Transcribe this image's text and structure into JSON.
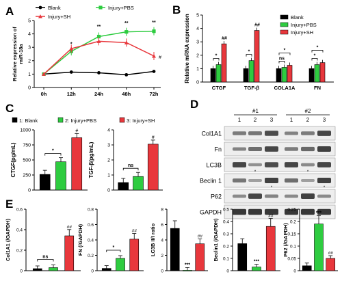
{
  "panels": {
    "A": "A",
    "B": "B",
    "C": "C",
    "D": "D",
    "E": "E"
  },
  "colors": {
    "blank": "#000000",
    "pbs": "#2ecc40",
    "sh": "#e8373c",
    "band": "#2a2a2a"
  },
  "chart_data": [
    {
      "panel": "A",
      "type": "line",
      "ylabel": "Relative expression of miR-18a",
      "x": [
        "0h",
        "12h",
        "24h",
        "48h",
        "72h"
      ],
      "ylim": [
        0,
        5
      ],
      "yticks": [
        0,
        1,
        2,
        3,
        4,
        5
      ],
      "legend": {
        "position": "top-left"
      },
      "series": [
        {
          "name": "Blank",
          "values": [
            1.0,
            1.15,
            1.1,
            0.95,
            1.2
          ]
        },
        {
          "name": "Injury+PBS",
          "values": [
            1.0,
            2.7,
            3.8,
            4.15,
            4.2
          ]
        },
        {
          "name": "Injury+SH",
          "values": [
            1.0,
            2.9,
            3.45,
            3.35,
            2.35
          ]
        }
      ],
      "annotations": [
        {
          "x": "12h",
          "text": "*"
        },
        {
          "x": "24h",
          "text": "**"
        },
        {
          "x": "48h",
          "text": "**"
        },
        {
          "x": "72h",
          "text": "**"
        },
        {
          "x": "72h",
          "text": "#"
        }
      ]
    },
    {
      "panel": "B",
      "type": "bar",
      "ylabel": "Relative mRNA expression",
      "categories": [
        "CTGF",
        "TGF-β",
        "COLA1A",
        "FN"
      ],
      "ylim": [
        0,
        5
      ],
      "yticks": [
        0,
        1,
        2,
        3,
        4,
        5
      ],
      "legend": {
        "position": "top-right"
      },
      "series": [
        {
          "name": "Blank",
          "values": [
            1.0,
            1.0,
            1.0,
            1.0
          ]
        },
        {
          "name": "Injury+PBS",
          "values": [
            1.3,
            1.6,
            1.1,
            1.3
          ]
        },
        {
          "name": "Injury+SH",
          "values": [
            2.85,
            3.85,
            1.25,
            1.45
          ]
        }
      ],
      "annotations": [
        "*",
        "##",
        "*",
        "##",
        "ns",
        "*",
        "*",
        "*"
      ]
    },
    {
      "panel": "C",
      "type": "bar",
      "legend_items": [
        "1: Blank",
        "2: Injury+PBS",
        "3: Injury+SH"
      ],
      "subcharts": [
        {
          "ylabel": "CTGF(pg/mL)",
          "categories": [
            "1",
            "2",
            "3"
          ],
          "values": [
            260,
            470,
            870
          ],
          "ylim": [
            0,
            1000
          ],
          "yticks": [
            0,
            250,
            500,
            750,
            1000
          ],
          "annotations": [
            "*",
            "#"
          ]
        },
        {
          "ylabel": "TGF-β(pg/mL)",
          "categories": [
            "1",
            "2",
            "3"
          ],
          "values": [
            0.5,
            0.9,
            3.05
          ],
          "ylim": [
            0,
            4
          ],
          "yticks": [
            0,
            1,
            2,
            3,
            4
          ],
          "annotations": [
            "ns",
            "#"
          ]
        }
      ]
    },
    {
      "panel": "E",
      "type": "bar",
      "categories": [
        "Blank",
        "Injury+PBS",
        "Injury+SH"
      ],
      "subcharts": [
        {
          "ylabel": "Col1A1 (/GAPDH)",
          "values": [
            0.02,
            0.03,
            0.34
          ],
          "ylim": [
            0,
            0.6
          ],
          "yticks": [
            0.0,
            0.2,
            0.4,
            0.6
          ],
          "annotations": [
            "ns",
            "##"
          ]
        },
        {
          "ylabel": "FN (/GAPDH)",
          "values": [
            0.03,
            0.16,
            0.41
          ],
          "ylim": [
            0,
            0.8
          ],
          "yticks": [
            0.0,
            0.2,
            0.4,
            0.6,
            0.8
          ],
          "annotations": [
            "*",
            "##"
          ]
        },
        {
          "ylabel": "LC3B II/I ratio",
          "values": [
            5.5,
            0.05,
            3.5
          ],
          "ylim": [
            0,
            8
          ],
          "yticks": [
            0,
            2,
            4,
            6,
            8
          ],
          "annotations": [
            "***",
            "##"
          ]
        },
        {
          "ylabel": "Beclin1 (/GAPDH)",
          "values": [
            0.22,
            0.03,
            0.36
          ],
          "ylim": [
            0,
            0.5
          ],
          "yticks": [
            0.0,
            0.1,
            0.2,
            0.3,
            0.4,
            0.5
          ],
          "annotations": [
            "***",
            "##"
          ]
        },
        {
          "ylabel": "P62 (/GAPDH)",
          "values": [
            0.02,
            0.19,
            0.05
          ],
          "ylim": [
            0,
            0.25
          ],
          "yticks": [
            0.0,
            0.05,
            0.1,
            0.15,
            0.2,
            0.25
          ],
          "annotations": [
            "***",
            "##"
          ]
        }
      ]
    }
  ],
  "blot": {
    "group_labels": [
      "#1",
      "#2"
    ],
    "lane_labels": [
      "1",
      "2",
      "3",
      "1",
      "2",
      "3"
    ],
    "rows": [
      {
        "label": "Col1A1",
        "intensities": [
          0.4,
          0.45,
          0.75,
          0.35,
          0.4,
          0.8
        ]
      },
      {
        "label": "Fn",
        "intensities": [
          0.35,
          0.5,
          0.8,
          0.4,
          0.55,
          0.85
        ]
      },
      {
        "label": "LC3B",
        "intensities": [
          0.8,
          0.25,
          0.75,
          0.8,
          0.3,
          0.8
        ]
      },
      {
        "label": "Beclin 1",
        "intensities": [
          0.45,
          0.15,
          0.85,
          0.5,
          0.15,
          0.85
        ]
      },
      {
        "label": "P62",
        "intensities": [
          0.3,
          0.8,
          0.35,
          0.3,
          0.85,
          0.3
        ]
      },
      {
        "label": "GAPDH",
        "intensities": [
          0.9,
          0.9,
          0.9,
          0.9,
          0.9,
          0.9
        ]
      }
    ],
    "markers": [
      "*",
      "*",
      "*",
      "*"
    ]
  }
}
